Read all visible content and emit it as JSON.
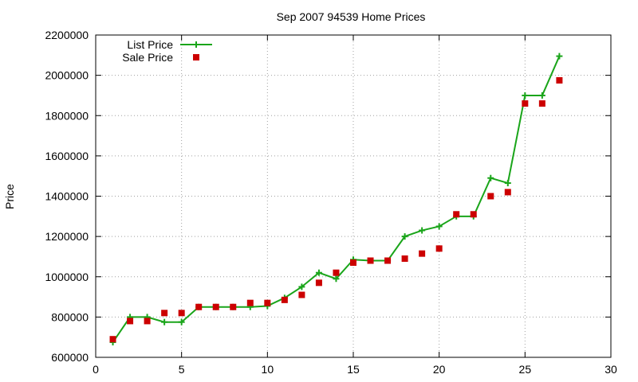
{
  "chart_data": {
    "type": "line",
    "title": "Sep 2007 94539 Home Prices",
    "xlabel": "",
    "ylabel": "Price",
    "xlim": [
      0,
      30
    ],
    "ylim": [
      600000,
      2200000
    ],
    "xticks": [
      0,
      5,
      10,
      15,
      20,
      25,
      30
    ],
    "yticks": [
      600000,
      800000,
      1000000,
      1200000,
      1400000,
      1600000,
      1800000,
      2000000,
      2200000
    ],
    "grid": true,
    "legend_position": "top-left",
    "series": [
      {
        "name": "List Price",
        "style": "line-points",
        "color": "#1aa51a",
        "x": [
          1,
          2,
          3,
          4,
          5,
          6,
          7,
          8,
          9,
          10,
          11,
          12,
          13,
          14,
          15,
          16,
          17,
          18,
          19,
          20,
          21,
          22,
          23,
          24,
          25,
          26,
          27
        ],
        "y": [
          675000,
          800000,
          800000,
          775000,
          775000,
          850000,
          850000,
          850000,
          850000,
          855000,
          895000,
          950000,
          1020000,
          990000,
          1085000,
          1080000,
          1080000,
          1200000,
          1230000,
          1250000,
          1300000,
          1300000,
          1490000,
          1465000,
          1900000,
          1900000,
          2095000
        ]
      },
      {
        "name": "Sale Price",
        "style": "points",
        "color": "#cc0000",
        "x": [
          1,
          2,
          3,
          4,
          5,
          6,
          7,
          8,
          9,
          10,
          11,
          12,
          13,
          14,
          15,
          16,
          17,
          18,
          19,
          20,
          21,
          22,
          23,
          24,
          25,
          26,
          27
        ],
        "y": [
          690000,
          780000,
          780000,
          820000,
          820000,
          850000,
          850000,
          850000,
          870000,
          870000,
          885000,
          910000,
          970000,
          1020000,
          1070000,
          1080000,
          1080000,
          1090000,
          1115000,
          1140000,
          1310000,
          1310000,
          1400000,
          1420000,
          1860000,
          1860000,
          1975000
        ]
      }
    ]
  }
}
